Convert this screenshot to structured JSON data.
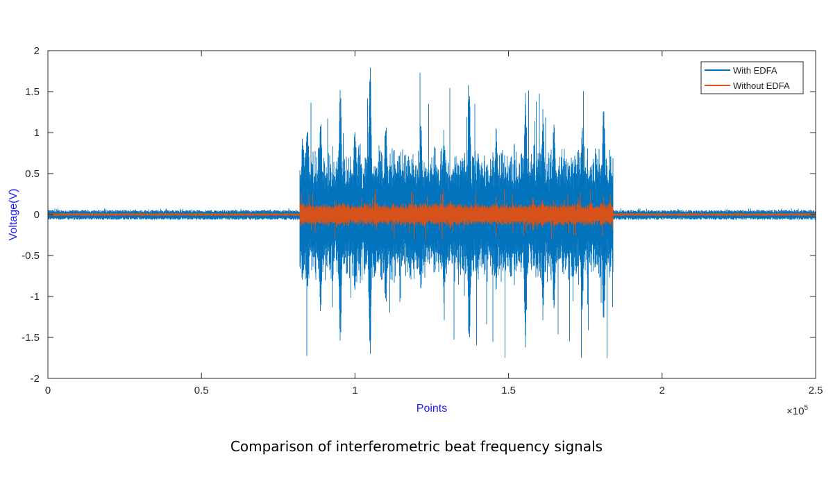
{
  "caption": "Comparison of interferometric beat frequency signals",
  "chart_data": {
    "type": "line",
    "title": "",
    "xlabel": "Points",
    "ylabel": "Voltage(V)",
    "x_exponent_label": "×10",
    "x_exponent_power": "5",
    "xlim": [
      0,
      2.5
    ],
    "ylim": [
      -2,
      2
    ],
    "x_scale_factor": 100000,
    "xticks": [
      "0",
      "0.5",
      "1",
      "1.5",
      "2",
      "2.5"
    ],
    "xtick_values": [
      0,
      0.5,
      1,
      1.5,
      2,
      2.5
    ],
    "yticks": [
      "2",
      "1.5",
      "1",
      "0.5",
      "0",
      "-0.5",
      "-1",
      "-1.5",
      "-2"
    ],
    "ytick_values": [
      2,
      1.5,
      1,
      0.5,
      0,
      -0.5,
      -1,
      -1.5,
      -2
    ],
    "grid": false,
    "legend_position": "top-right",
    "series": [
      {
        "name": "With EDFA",
        "color": "#0072BD",
        "baseline_amplitude": 0.03,
        "burst_range": [
          0.82,
          1.84
        ],
        "burst_typical_amplitude": [
          0.45,
          0.8
        ],
        "peaks": [
          {
            "x": 0.83,
            "max": 1.05,
            "min": -0.9
          },
          {
            "x": 0.845,
            "max": 1.15,
            "min": -1.0
          },
          {
            "x": 0.888,
            "max": 1.3,
            "min": -1.3
          },
          {
            "x": 0.952,
            "max": 1.58,
            "min": -1.6
          },
          {
            "x": 1.0,
            "max": 1.2,
            "min": -1.1
          },
          {
            "x": 1.049,
            "max": 1.9,
            "min": -1.8
          },
          {
            "x": 1.1,
            "max": 1.2,
            "min": -1.2
          },
          {
            "x": 1.214,
            "max": 1.2,
            "min": -1.0
          },
          {
            "x": 1.29,
            "max": 1.05,
            "min": -1.1
          },
          {
            "x": 1.372,
            "max": 1.64,
            "min": -1.7
          },
          {
            "x": 1.46,
            "max": 1.15,
            "min": -1.0
          },
          {
            "x": 1.555,
            "max": 1.6,
            "min": -1.75
          },
          {
            "x": 1.612,
            "max": 1.3,
            "min": -1.3
          },
          {
            "x": 1.648,
            "max": 1.25,
            "min": -1.3
          },
          {
            "x": 1.74,
            "max": 1.1,
            "min": -1.2
          },
          {
            "x": 1.81,
            "max": 1.5,
            "min": -1.5
          }
        ]
      },
      {
        "name": "Without EDFA",
        "color": "#D95319",
        "baseline_amplitude": 0.012,
        "burst_range": [
          0.82,
          1.84
        ],
        "burst_typical_amplitude": [
          0.08,
          0.14
        ],
        "peaks": [
          {
            "x": 0.83,
            "max": 0.15,
            "min": -0.14
          },
          {
            "x": 0.95,
            "max": 0.16,
            "min": -0.15
          },
          {
            "x": 1.07,
            "max": 0.15,
            "min": -0.15
          },
          {
            "x": 1.31,
            "max": 0.18,
            "min": -0.19
          },
          {
            "x": 1.58,
            "max": 0.21,
            "min": -0.2
          },
          {
            "x": 1.61,
            "max": 0.19,
            "min": -0.17
          },
          {
            "x": 1.83,
            "max": 0.17,
            "min": -0.15
          }
        ]
      }
    ]
  }
}
